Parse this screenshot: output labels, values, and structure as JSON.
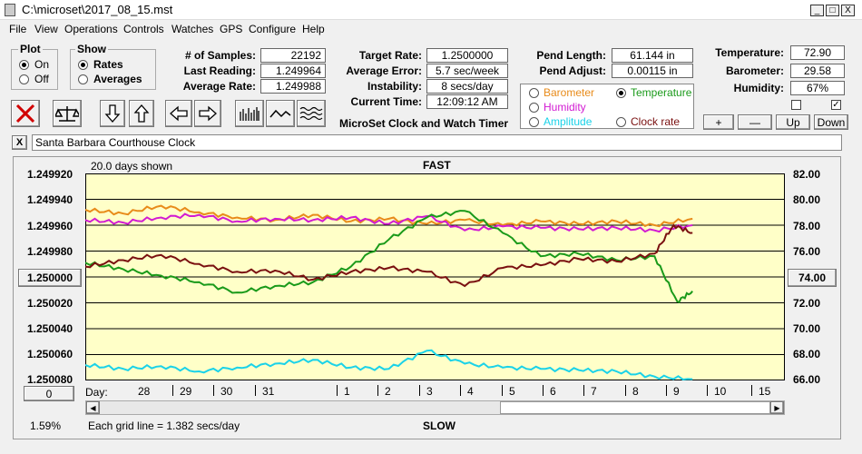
{
  "window": {
    "title": "C:\\microset\\2017_08_15.mst",
    "minimize": "_",
    "maximize": "□",
    "close": "X"
  },
  "menu": [
    "File",
    "View",
    "Operations",
    "Controls",
    "Watches",
    "GPS",
    "Configure",
    "Help"
  ],
  "plot": {
    "title": "Plot",
    "options": [
      "On",
      "Off"
    ],
    "selected": 0
  },
  "show": {
    "title": "Show",
    "options": [
      "Rates",
      "Averages"
    ],
    "selected": 0
  },
  "stats": {
    "samples_label": "# of Samples:",
    "samples": "22192",
    "last_label": "Last Reading:",
    "last": "1.249964",
    "avg_rate_label": "Average Rate:",
    "avg_rate": "1.249988",
    "target_label": "Target Rate:",
    "target": "1.2500000",
    "avg_error_label": "Average Error:",
    "avg_error": "5.7 sec/week",
    "instab_label": "Instability:",
    "instab": "8 secs/day",
    "time_label": "Current Time:",
    "time": "12:09:12 AM",
    "pend_len_label": "Pend Length:",
    "pend_len": "61.144 in",
    "pend_adj_label": "Pend Adjust:",
    "pend_adj": "0.00115 in",
    "temp_label": "Temperature:",
    "temp": "72.90",
    "baro_label": "Barometer:",
    "baro": "29.58",
    "hum_label": "Humidity:",
    "hum": "67%"
  },
  "app_caption": "MicroSet Clock and Watch Timer",
  "sensors": [
    {
      "label": "Barometer",
      "color": "#e88b1a",
      "on": false
    },
    {
      "label": "Temperature",
      "color": "#1a9a1a",
      "on": true
    },
    {
      "label": "Humidity",
      "color": "#d21ad2",
      "on": false
    },
    {
      "label": "Clock rate",
      "color": "#7a1010",
      "on": false
    },
    {
      "label": "Amplitude",
      "color": "#1ad2e8",
      "on": false
    }
  ],
  "adjust_buttons": [
    "+",
    "—",
    "Up",
    "Down"
  ],
  "clock_name": "Santa Barbara Courthouse Clock",
  "name_close": "X",
  "chart_data": {
    "type": "line",
    "days_shown": "20.0 days shown",
    "top_label": "FAST",
    "bottom_label": "SLOW",
    "grid_note": "Each grid line = 1.382 secs/day",
    "left_percent": "1.59%",
    "left_button": "1.250000",
    "right_button": "74.00",
    "zero_button": "0",
    "day_label": "Day:",
    "y_left_ticks": [
      "1.249920",
      "1.249940",
      "1.249960",
      "1.249980",
      "1.250000",
      "1.250020",
      "1.250040",
      "1.250060",
      "1.250080"
    ],
    "y_right_ticks": [
      "82.00",
      "80.00",
      "78.00",
      "76.00",
      "74.00",
      "72.00",
      "70.00",
      "68.00",
      "66.00"
    ],
    "x_days": [
      "28",
      "29",
      "30",
      "31",
      "1",
      "2",
      "3",
      "4",
      "5",
      "6",
      "7",
      "8",
      "9",
      "10",
      "15"
    ],
    "ylim_left": [
      1.25008,
      1.24992
    ],
    "ylim_right": [
      66,
      82
    ],
    "x_range": [
      0,
      17
    ],
    "series": [
      {
        "color": "#e88b1a",
        "axis": "right",
        "x": [
          0,
          1,
          2,
          3,
          4,
          5,
          6,
          7,
          8,
          9,
          10,
          11,
          12,
          13,
          14,
          15,
          16
        ],
        "y": [
          79.2,
          78.9,
          79.5,
          79.0,
          78.6,
          78.4,
          78.8,
          78.3,
          78.5,
          78.1,
          78.4,
          78.0,
          78.3,
          78.1,
          78.3,
          78.0,
          78.5
        ]
      },
      {
        "color": "#d21ad2",
        "axis": "right",
        "x": [
          0,
          1,
          2,
          3,
          4,
          5,
          6,
          7,
          8,
          9,
          10,
          11,
          12,
          13,
          14,
          15,
          16
        ],
        "y": [
          78.4,
          78.2,
          78.6,
          78.8,
          78.3,
          78.5,
          78.4,
          78.6,
          78.1,
          78.7,
          77.6,
          77.9,
          77.8,
          77.7,
          77.8,
          77.6,
          78.0
        ]
      },
      {
        "color": "#1a9a1a",
        "axis": "right",
        "x": [
          0,
          1,
          2,
          3,
          4,
          5,
          6,
          7,
          8,
          9,
          10,
          11,
          12,
          13,
          14,
          15,
          15.6,
          16
        ],
        "y": [
          75.1,
          74.6,
          74.1,
          73.6,
          72.8,
          73.3,
          73.6,
          74.8,
          76.9,
          78.6,
          79.1,
          77.4,
          75.6,
          75.8,
          75.3,
          75.6,
          72.1,
          72.9
        ]
      },
      {
        "color": "#7a1010",
        "axis": "left",
        "x": [
          0,
          1,
          2,
          3,
          4,
          5,
          6,
          7,
          8,
          9,
          10,
          11,
          12,
          13,
          14,
          15,
          15.5,
          16
        ],
        "y": [
          1.249992,
          1.249987,
          1.249983,
          1.24999,
          1.249996,
          1.249995,
          1.250002,
          1.249996,
          1.249993,
          1.249996,
          1.250007,
          1.249993,
          1.249991,
          1.249986,
          1.249988,
          1.249982,
          1.24996,
          1.249966
        ]
      },
      {
        "color": "#1ad2e8",
        "axis": "right",
        "x": [
          0,
          1,
          2,
          3,
          4,
          5,
          6,
          7,
          8,
          9,
          10,
          11,
          12,
          13,
          14,
          15,
          16
        ],
        "y": [
          67.2,
          66.9,
          67.1,
          66.7,
          67.0,
          67.3,
          67.6,
          67.0,
          66.9,
          68.3,
          67.3,
          67.0,
          66.9,
          66.8,
          66.7,
          66.3,
          66.1
        ]
      }
    ]
  }
}
